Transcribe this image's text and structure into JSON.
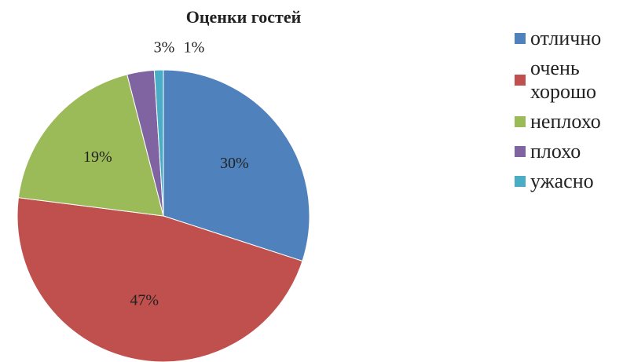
{
  "chart_data": {
    "type": "pie",
    "title": "Оценки гостей",
    "categories": [
      "отлично",
      "очень хорошо",
      "неплохо",
      "плохо",
      "ужасно"
    ],
    "values": [
      30,
      47,
      19,
      3,
      1
    ],
    "value_labels": [
      "30%",
      "47%",
      "19%",
      "3%",
      "1%"
    ],
    "colors": [
      "#4f81bd",
      "#c0504d",
      "#9bbb59",
      "#8064a2",
      "#4bacc6"
    ],
    "legend": "right"
  }
}
